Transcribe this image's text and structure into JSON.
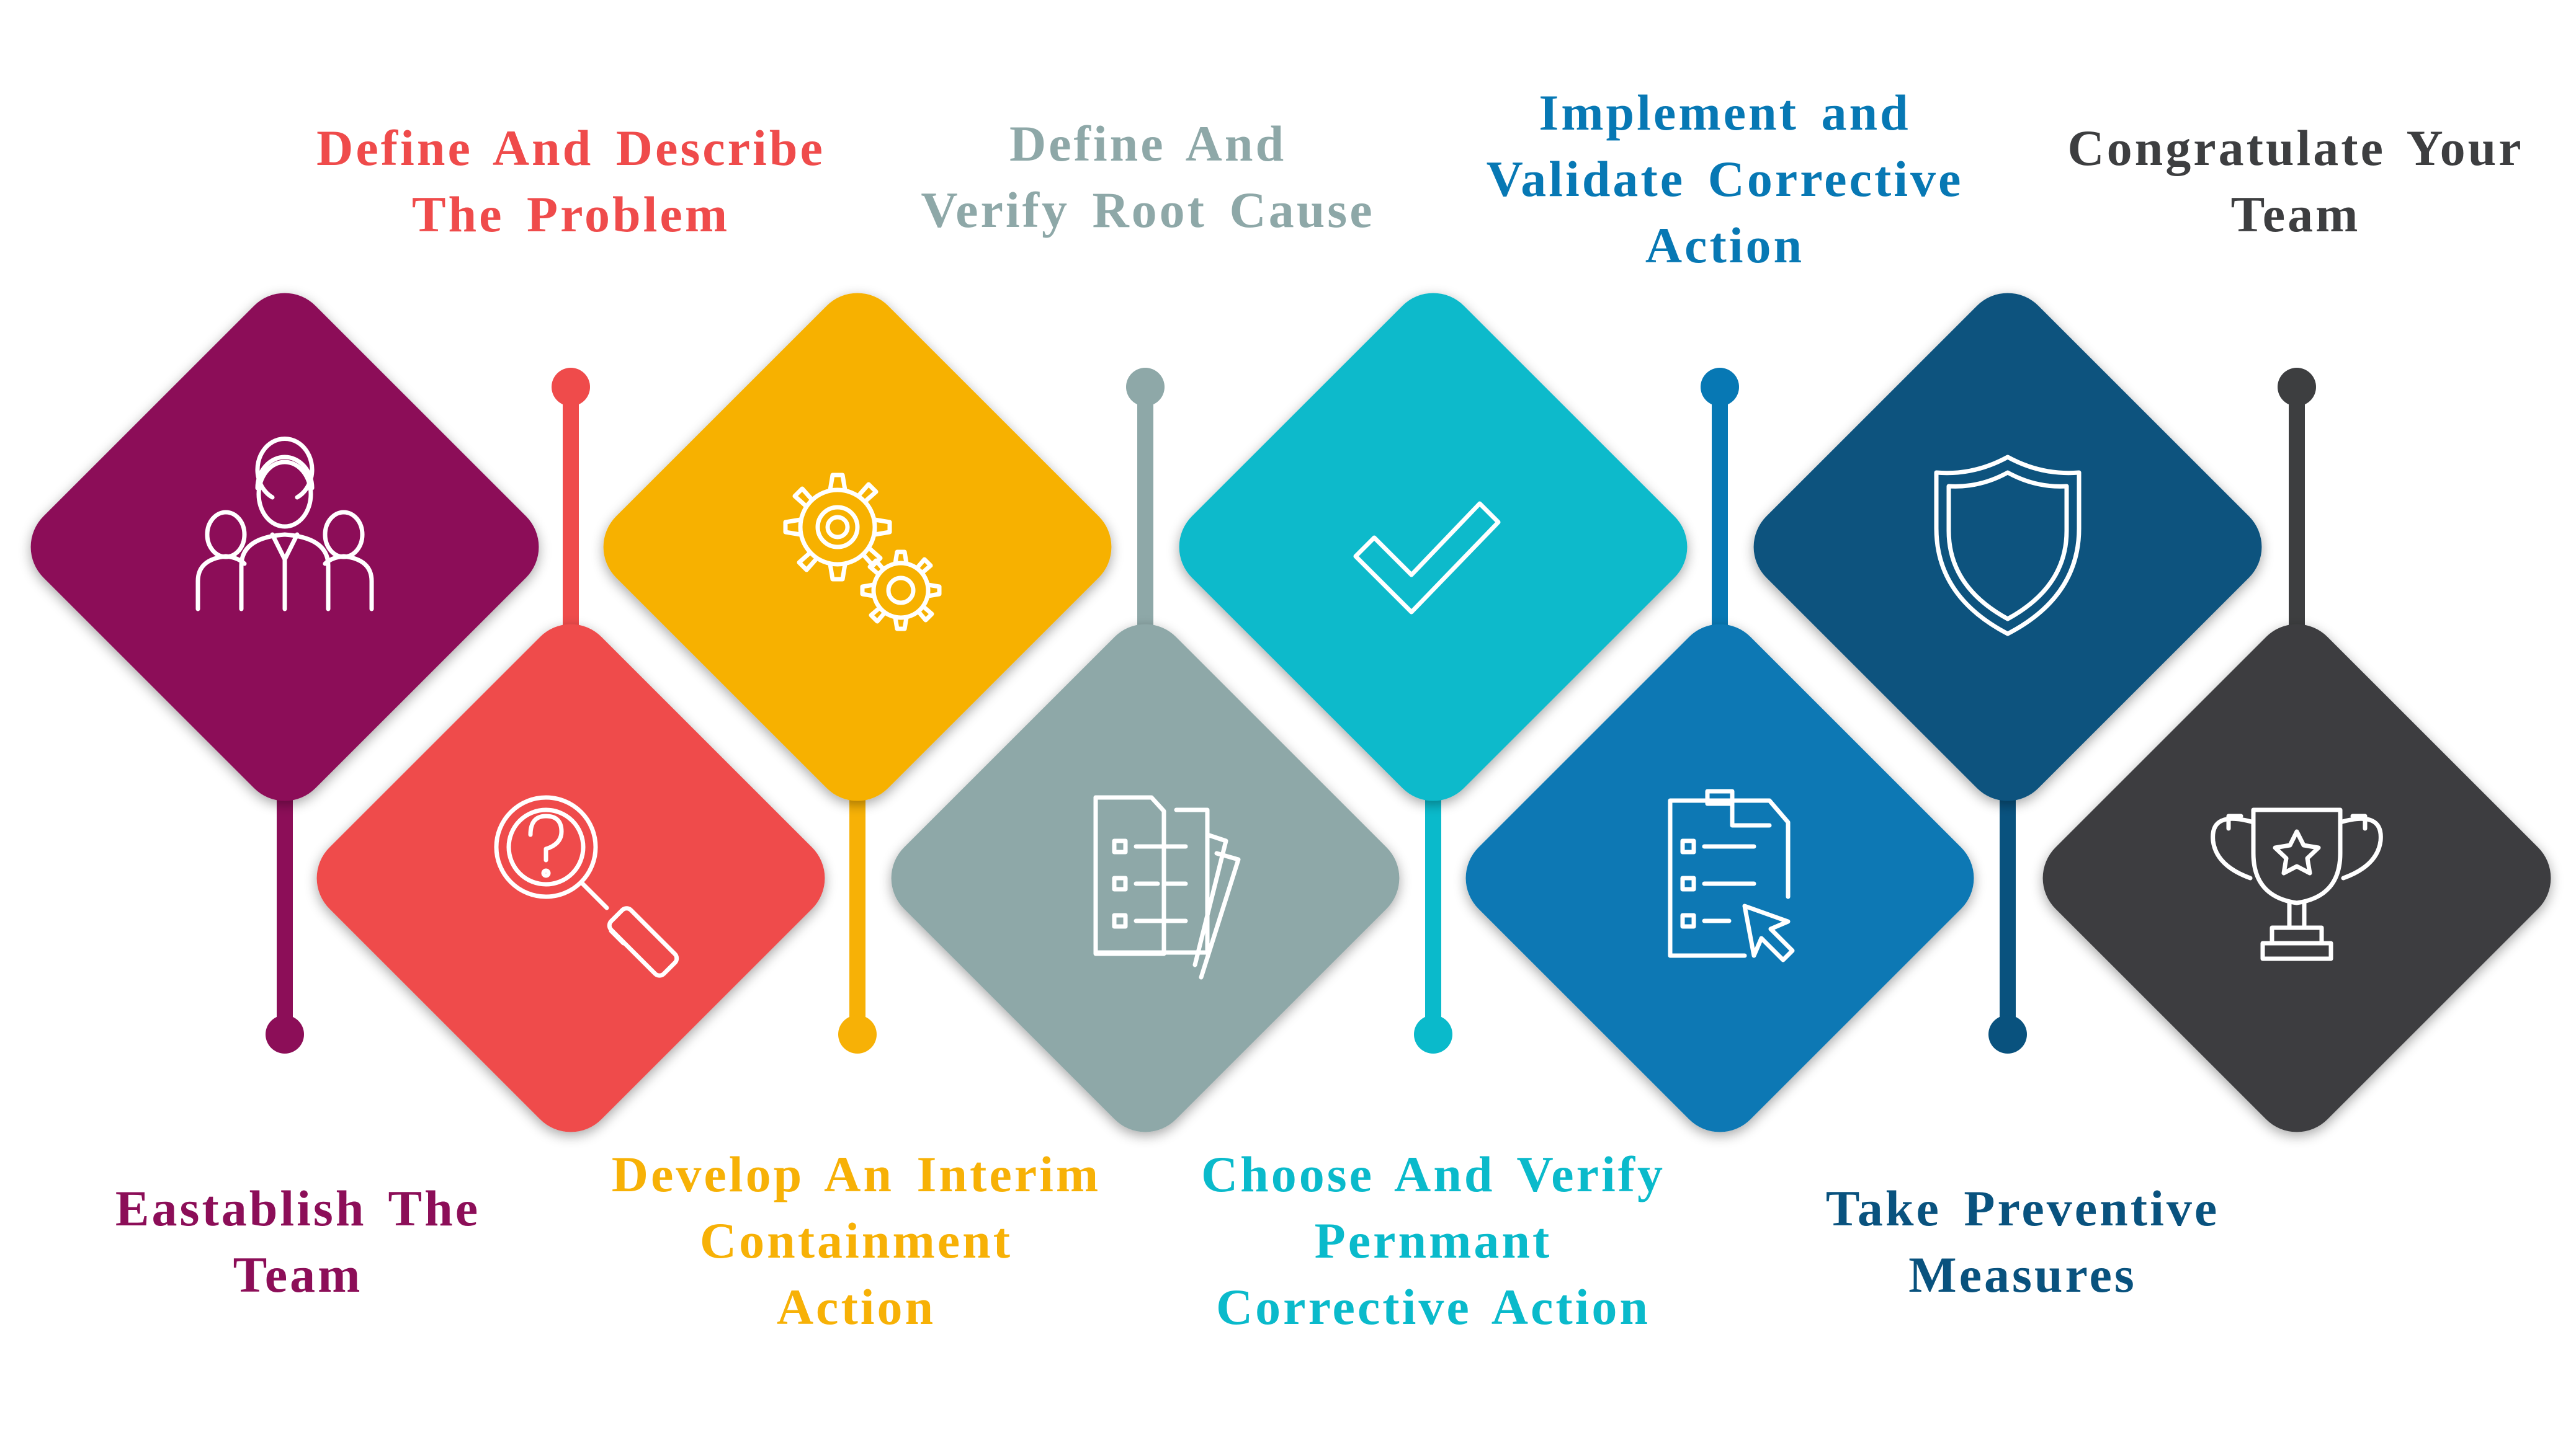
{
  "steps": [
    {
      "id": "d1",
      "label": [
        "Eastablish The",
        "Team"
      ],
      "color": "#8C0E58",
      "icon": "team-icon",
      "row": "top",
      "label_position": "bottom"
    },
    {
      "id": "d2",
      "label": [
        "Define And Describe",
        "The Problem"
      ],
      "color": "#EF4B4B",
      "icon": "magnifier-question-icon",
      "row": "bottom",
      "label_position": "top"
    },
    {
      "id": "d3",
      "label": [
        "Develop An Interim",
        "Containment",
        "Action"
      ],
      "color": "#F7B106",
      "icon": "gears-icon",
      "row": "top",
      "label_position": "bottom"
    },
    {
      "id": "d4",
      "label": [
        "Define And",
        "Verify Root Cause"
      ],
      "color": "#8EA8A8",
      "icon": "documents-icon",
      "row": "bottom",
      "label_position": "top"
    },
    {
      "id": "d5",
      "label": [
        "Choose And Verify",
        "Pernmant",
        "Corrective Action"
      ],
      "color": "#0ABACB",
      "icon": "checkmark-icon",
      "row": "top",
      "label_position": "bottom"
    },
    {
      "id": "d6",
      "label": [
        "Implement and",
        "Validate Corrective",
        "Action"
      ],
      "color": "#0778B4",
      "icon": "checklist-cursor-icon",
      "row": "bottom",
      "label_position": "top"
    },
    {
      "id": "d7",
      "label": [
        "Take Preventive",
        "Measures"
      ],
      "color": "#09527E",
      "icon": "shield-icon",
      "row": "top",
      "label_position": "bottom"
    },
    {
      "id": "d8",
      "label": [
        "Congratulate Your",
        "Team"
      ],
      "color": "#3D3E40",
      "icon": "trophy-icon",
      "row": "bottom",
      "label_position": "top"
    }
  ]
}
